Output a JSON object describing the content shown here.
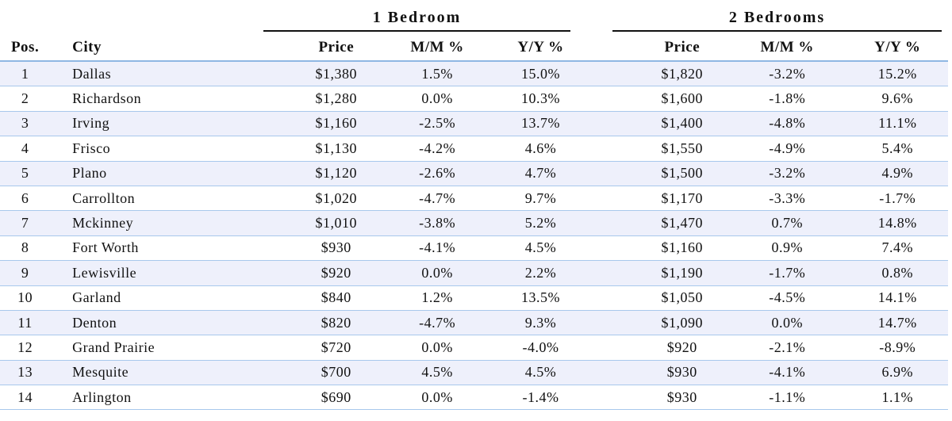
{
  "groups": {
    "one_bedroom": "1 Bedroom",
    "two_bedrooms": "2 Bedrooms"
  },
  "headers": {
    "pos": "Pos.",
    "city": "City",
    "price": "Price",
    "mm": "M/M %",
    "yy": "Y/Y %"
  },
  "rows": [
    {
      "pos": "1",
      "city": "Dallas",
      "p1": "$1,380",
      "mm1": "1.5%",
      "yy1": "15.0%",
      "p2": "$1,820",
      "mm2": "-3.2%",
      "yy2": "15.2%"
    },
    {
      "pos": "2",
      "city": "Richardson",
      "p1": "$1,280",
      "mm1": "0.0%",
      "yy1": "10.3%",
      "p2": "$1,600",
      "mm2": "-1.8%",
      "yy2": "9.6%"
    },
    {
      "pos": "3",
      "city": "Irving",
      "p1": "$1,160",
      "mm1": "-2.5%",
      "yy1": "13.7%",
      "p2": "$1,400",
      "mm2": "-4.8%",
      "yy2": "11.1%"
    },
    {
      "pos": "4",
      "city": "Frisco",
      "p1": "$1,130",
      "mm1": "-4.2%",
      "yy1": "4.6%",
      "p2": "$1,550",
      "mm2": "-4.9%",
      "yy2": "5.4%"
    },
    {
      "pos": "5",
      "city": "Plano",
      "p1": "$1,120",
      "mm1": "-2.6%",
      "yy1": "4.7%",
      "p2": "$1,500",
      "mm2": "-3.2%",
      "yy2": "4.9%"
    },
    {
      "pos": "6",
      "city": "Carrollton",
      "p1": "$1,020",
      "mm1": "-4.7%",
      "yy1": "9.7%",
      "p2": "$1,170",
      "mm2": "-3.3%",
      "yy2": "-1.7%"
    },
    {
      "pos": "7",
      "city": "Mckinney",
      "p1": "$1,010",
      "mm1": "-3.8%",
      "yy1": "5.2%",
      "p2": "$1,470",
      "mm2": "0.7%",
      "yy2": "14.8%"
    },
    {
      "pos": "8",
      "city": "Fort Worth",
      "p1": "$930",
      "mm1": "-4.1%",
      "yy1": "4.5%",
      "p2": "$1,160",
      "mm2": "0.9%",
      "yy2": "7.4%"
    },
    {
      "pos": "9",
      "city": "Lewisville",
      "p1": "$920",
      "mm1": "0.0%",
      "yy1": "2.2%",
      "p2": "$1,190",
      "mm2": "-1.7%",
      "yy2": "0.8%"
    },
    {
      "pos": "10",
      "city": "Garland",
      "p1": "$840",
      "mm1": "1.2%",
      "yy1": "13.5%",
      "p2": "$1,050",
      "mm2": "-4.5%",
      "yy2": "14.1%"
    },
    {
      "pos": "11",
      "city": "Denton",
      "p1": "$820",
      "mm1": "-4.7%",
      "yy1": "9.3%",
      "p2": "$1,090",
      "mm2": "0.0%",
      "yy2": "14.7%"
    },
    {
      "pos": "12",
      "city": "Grand Prairie",
      "p1": "$720",
      "mm1": "0.0%",
      "yy1": "-4.0%",
      "p2": "$920",
      "mm2": "-2.1%",
      "yy2": "-8.9%"
    },
    {
      "pos": "13",
      "city": "Mesquite",
      "p1": "$700",
      "mm1": "4.5%",
      "yy1": "4.5%",
      "p2": "$930",
      "mm2": "-4.1%",
      "yy2": "6.9%"
    },
    {
      "pos": "14",
      "city": "Arlington",
      "p1": "$690",
      "mm1": "0.0%",
      "yy1": "-1.4%",
      "p2": "$930",
      "mm2": "-1.1%",
      "yy2": "1.1%"
    }
  ]
}
